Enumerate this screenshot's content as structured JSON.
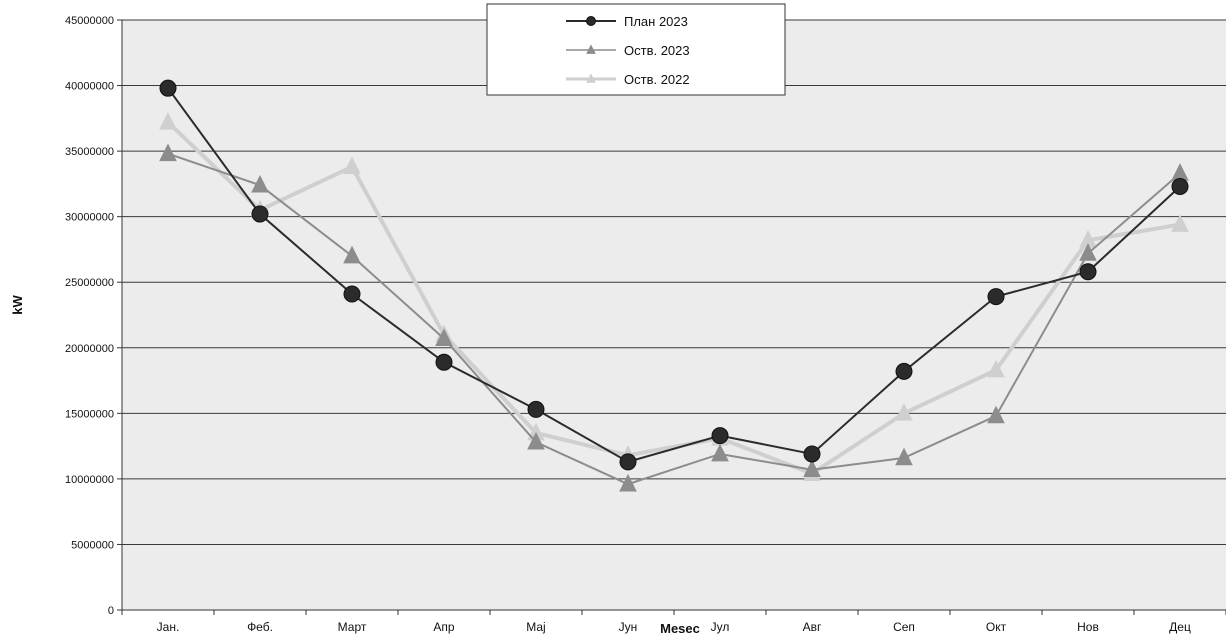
{
  "chart_data": {
    "type": "line",
    "title": "",
    "xlabel": "Mesec",
    "ylabel": "kW",
    "categories": [
      "Јан.",
      "Феб.",
      "Март",
      "Апр",
      "Мај",
      "Јун",
      "Јул",
      "Авг",
      "Сеп",
      "Окт",
      "Нов",
      "Дец"
    ],
    "ylim": [
      0,
      45000000
    ],
    "yticks": [
      "0",
      "5000000",
      "10000000",
      "15000000",
      "20000000",
      "25000000",
      "30000000",
      "35000000",
      "40000000",
      "45000000"
    ],
    "grid": true,
    "legend_position": "top-center",
    "series": [
      {
        "name": "План 2023",
        "color": "#2b2b2b",
        "marker": "circle",
        "values": [
          39800000,
          30200000,
          24100000,
          18900000,
          15300000,
          11300000,
          13300000,
          11900000,
          18200000,
          23900000,
          25800000,
          32300000
        ]
      },
      {
        "name": "Оств. 2023",
        "color": "#8c8c8c",
        "marker": "triangle",
        "values": [
          34800000,
          32400000,
          27000000,
          20700000,
          12800000,
          9600000,
          11900000,
          10700000,
          11600000,
          14800000,
          27200000,
          33300000
        ]
      },
      {
        "name": "Оств. 2022",
        "color": "#cfcfcf",
        "marker": "triangle",
        "values": [
          37200000,
          30500000,
          33800000,
          21000000,
          13500000,
          11800000,
          13100000,
          10400000,
          15000000,
          18300000,
          28200000,
          29400000
        ]
      }
    ]
  }
}
